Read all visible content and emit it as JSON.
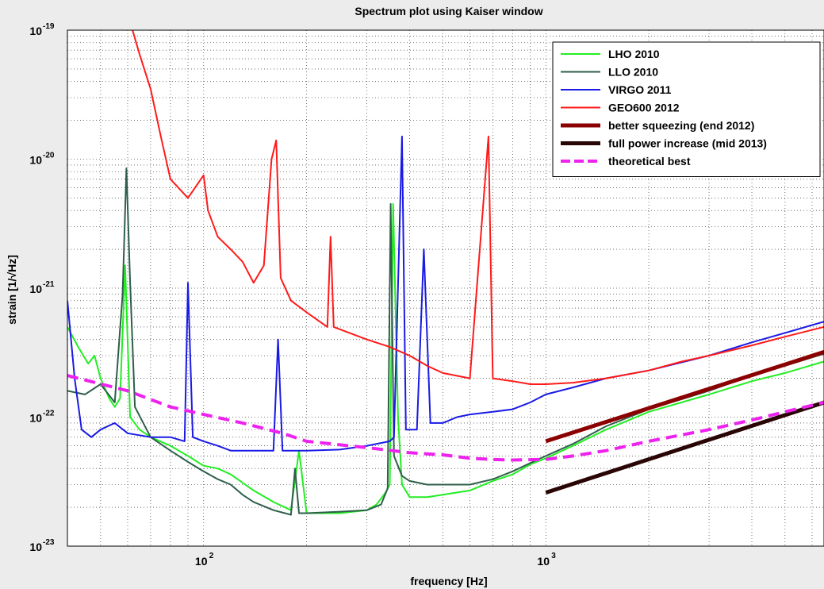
{
  "chart_data": {
    "type": "line",
    "title": "Spectrum plot using Kaiser window",
    "xlabel": "frequency [Hz]",
    "ylabel": "strain [1/√Hz]",
    "xscale": "log",
    "yscale": "log",
    "xlim": [
      40,
      6500
    ],
    "ylim": [
      1e-23,
      1e-19
    ],
    "xticks": [
      {
        "base": "10",
        "exp": "2",
        "value": 100
      },
      {
        "base": "10",
        "exp": "3",
        "value": 1000
      }
    ],
    "yticks": [
      {
        "base": "10",
        "exp": "-19",
        "value": 1e-19
      },
      {
        "base": "10",
        "exp": "-20",
        "value": 1e-20
      },
      {
        "base": "10",
        "exp": "-21",
        "value": 1e-21
      },
      {
        "base": "10",
        "exp": "-22",
        "value": 1e-22
      },
      {
        "base": "10",
        "exp": "-23",
        "value": 1e-23
      }
    ],
    "grid": true,
    "legend_position": "top-right",
    "series": [
      {
        "name": "LHO 2010",
        "color": "#22ee22",
        "width": 2,
        "dash": "",
        "points": [
          [
            40,
            5e-22
          ],
          [
            43,
            3.5e-22
          ],
          [
            46,
            2.6e-22
          ],
          [
            48,
            3e-22
          ],
          [
            50,
            2e-22
          ],
          [
            53,
            1.4e-22
          ],
          [
            55,
            1.2e-22
          ],
          [
            57,
            1.4e-22
          ],
          [
            59,
            1.5e-21
          ],
          [
            61,
            1e-22
          ],
          [
            65,
            8e-23
          ],
          [
            70,
            7e-23
          ],
          [
            80,
            6e-23
          ],
          [
            90,
            5e-23
          ],
          [
            100,
            4.2e-23
          ],
          [
            110,
            4e-23
          ],
          [
            120,
            3.6e-23
          ],
          [
            140,
            2.7e-23
          ],
          [
            160,
            2.2e-23
          ],
          [
            180,
            1.9e-23
          ],
          [
            190,
            5.5e-23
          ],
          [
            200,
            1.8e-23
          ],
          [
            250,
            1.8e-23
          ],
          [
            300,
            1.9e-23
          ],
          [
            320,
            2.1e-23
          ],
          [
            340,
            2.6e-23
          ],
          [
            350,
            3e-23
          ],
          [
            358,
            4.5e-21
          ],
          [
            370,
            1e-22
          ],
          [
            380,
            3e-23
          ],
          [
            400,
            2.4e-23
          ],
          [
            450,
            2.4e-23
          ],
          [
            500,
            2.5e-23
          ],
          [
            600,
            2.7e-23
          ],
          [
            700,
            3.2e-23
          ],
          [
            800,
            3.6e-23
          ],
          [
            900,
            4.3e-23
          ],
          [
            1000,
            4.8e-23
          ],
          [
            1200,
            6e-23
          ],
          [
            1500,
            8e-23
          ],
          [
            2000,
            1.1e-22
          ],
          [
            3000,
            1.5e-22
          ],
          [
            4000,
            1.9e-22
          ],
          [
            5000,
            2.2e-22
          ],
          [
            6500,
            2.7e-22
          ]
        ]
      },
      {
        "name": "LLO 2010",
        "color": "#2e5e4a",
        "width": 2,
        "dash": "",
        "points": [
          [
            40,
            1.6e-22
          ],
          [
            45,
            1.5e-22
          ],
          [
            50,
            1.8e-22
          ],
          [
            55,
            1.3e-22
          ],
          [
            58,
            9e-22
          ],
          [
            59.5,
            8.5e-21
          ],
          [
            61,
            1.1e-21
          ],
          [
            63,
            1.2e-22
          ],
          [
            70,
            7e-23
          ],
          [
            80,
            5.5e-23
          ],
          [
            90,
            4.5e-23
          ],
          [
            100,
            3.8e-23
          ],
          [
            110,
            3.3e-23
          ],
          [
            120,
            3e-23
          ],
          [
            130,
            2.5e-23
          ],
          [
            140,
            2.2e-23
          ],
          [
            160,
            1.9e-23
          ],
          [
            180,
            1.75e-23
          ],
          [
            185,
            4e-23
          ],
          [
            190,
            1.8e-23
          ],
          [
            200,
            1.8e-23
          ],
          [
            250,
            1.85e-23
          ],
          [
            300,
            1.9e-23
          ],
          [
            330,
            2.1e-23
          ],
          [
            345,
            2.8e-23
          ],
          [
            352,
            4.5e-21
          ],
          [
            360,
            5e-23
          ],
          [
            380,
            3.5e-23
          ],
          [
            400,
            3.2e-23
          ],
          [
            450,
            3e-23
          ],
          [
            500,
            3e-23
          ],
          [
            600,
            3e-23
          ],
          [
            700,
            3.3e-23
          ],
          [
            800,
            3.8e-23
          ],
          [
            900,
            4.4e-23
          ],
          [
            1000,
            5e-23
          ],
          [
            1200,
            6.2e-23
          ],
          [
            1500,
            8.5e-23
          ],
          [
            2000,
            1.15e-22
          ],
          [
            3000,
            1.6e-22
          ],
          [
            4000,
            2.1e-22
          ],
          [
            5000,
            2.5e-22
          ],
          [
            6500,
            3.1e-22
          ]
        ]
      },
      {
        "name": "VIRGO 2011",
        "color": "#1a1ae6",
        "width": 2,
        "dash": "",
        "points": [
          [
            40,
            8e-22
          ],
          [
            42,
            2e-22
          ],
          [
            44,
            8e-23
          ],
          [
            47,
            7e-23
          ],
          [
            50,
            8e-23
          ],
          [
            55,
            9e-23
          ],
          [
            60,
            7.5e-23
          ],
          [
            70,
            7e-23
          ],
          [
            80,
            7e-23
          ],
          [
            88,
            6.5e-23
          ],
          [
            90,
            1.1e-21
          ],
          [
            93,
            7e-23
          ],
          [
            100,
            6.5e-23
          ],
          [
            110,
            6e-23
          ],
          [
            120,
            5.5e-23
          ],
          [
            140,
            5.5e-23
          ],
          [
            160,
            5.5e-23
          ],
          [
            165,
            4e-22
          ],
          [
            170,
            5.5e-23
          ],
          [
            200,
            5.5e-23
          ],
          [
            250,
            5.6e-23
          ],
          [
            300,
            6e-23
          ],
          [
            350,
            6.5e-23
          ],
          [
            360,
            7e-23
          ],
          [
            380,
            1.5e-20
          ],
          [
            390,
            8e-23
          ],
          [
            420,
            8e-23
          ],
          [
            440,
            2e-21
          ],
          [
            460,
            9e-23
          ],
          [
            500,
            9e-23
          ],
          [
            550,
            1e-22
          ],
          [
            600,
            1.05e-22
          ],
          [
            700,
            1.1e-22
          ],
          [
            800,
            1.15e-22
          ],
          [
            900,
            1.3e-22
          ],
          [
            1000,
            1.5e-22
          ],
          [
            1200,
            1.7e-22
          ],
          [
            1500,
            2e-22
          ],
          [
            2000,
            2.3e-22
          ],
          [
            3000,
            3e-22
          ],
          [
            4000,
            3.8e-22
          ],
          [
            5000,
            4.5e-22
          ],
          [
            6500,
            5.5e-22
          ]
        ]
      },
      {
        "name": "GEO600 2012",
        "color": "#ff1a1a",
        "width": 2,
        "dash": "",
        "points": [
          [
            62,
            1e-19
          ],
          [
            65,
            6.5e-20
          ],
          [
            70,
            3.5e-20
          ],
          [
            75,
            1.5e-20
          ],
          [
            80,
            7e-21
          ],
          [
            90,
            5e-21
          ],
          [
            100,
            7.5e-21
          ],
          [
            103,
            4e-21
          ],
          [
            110,
            2.5e-21
          ],
          [
            120,
            2e-21
          ],
          [
            130,
            1.6e-21
          ],
          [
            140,
            1.1e-21
          ],
          [
            150,
            1.5e-21
          ],
          [
            158,
            1e-20
          ],
          [
            163,
            1.4e-20
          ],
          [
            168,
            1.2e-21
          ],
          [
            180,
            8e-22
          ],
          [
            200,
            6.5e-22
          ],
          [
            230,
            5e-22
          ],
          [
            235,
            2.5e-21
          ],
          [
            240,
            5e-22
          ],
          [
            300,
            4e-22
          ],
          [
            350,
            3.5e-22
          ],
          [
            400,
            3e-22
          ],
          [
            450,
            2.5e-22
          ],
          [
            500,
            2.2e-22
          ],
          [
            600,
            2e-22
          ],
          [
            680,
            1.5e-20
          ],
          [
            700,
            2e-22
          ],
          [
            800,
            1.9e-22
          ],
          [
            900,
            1.8e-22
          ],
          [
            1000,
            1.8e-22
          ],
          [
            1200,
            1.85e-22
          ],
          [
            1500,
            2e-22
          ],
          [
            2000,
            2.3e-22
          ],
          [
            2500,
            2.7e-22
          ],
          [
            3000,
            3e-22
          ],
          [
            4000,
            3.6e-22
          ],
          [
            5000,
            4.2e-22
          ],
          [
            6500,
            5e-22
          ]
        ]
      },
      {
        "name": "better squeezing (end 2012)",
        "color": "#8b0000",
        "width": 5,
        "dash": "",
        "points": [
          [
            1000,
            6.5e-23
          ],
          [
            6500,
            3.2e-22
          ]
        ]
      },
      {
        "name": "full power increase (mid 2013)",
        "color": "#2a0505",
        "width": 5,
        "dash": "",
        "points": [
          [
            1000,
            2.6e-23
          ],
          [
            6500,
            1.3e-22
          ]
        ]
      },
      {
        "name": "theoretical best",
        "color": "#ee22ee",
        "width": 4,
        "dash": "14,8",
        "points": [
          [
            40,
            2.1e-22
          ],
          [
            60,
            1.6e-22
          ],
          [
            80,
            1.2e-22
          ],
          [
            100,
            1.05e-22
          ],
          [
            130,
            9e-23
          ],
          [
            170,
            7.5e-23
          ],
          [
            200,
            6.5e-23
          ],
          [
            300,
            5.8e-23
          ],
          [
            400,
            5.3e-23
          ],
          [
            500,
            5.1e-23
          ],
          [
            600,
            4.8e-23
          ],
          [
            700,
            4.7e-23
          ],
          [
            800,
            4.65e-23
          ],
          [
            1000,
            4.7e-23
          ],
          [
            1200,
            5e-23
          ],
          [
            1500,
            5.5e-23
          ],
          [
            2000,
            6.5e-23
          ],
          [
            3000,
            8e-23
          ],
          [
            4000,
            9.5e-23
          ],
          [
            5000,
            1.1e-22
          ],
          [
            6500,
            1.3e-22
          ]
        ]
      }
    ]
  }
}
